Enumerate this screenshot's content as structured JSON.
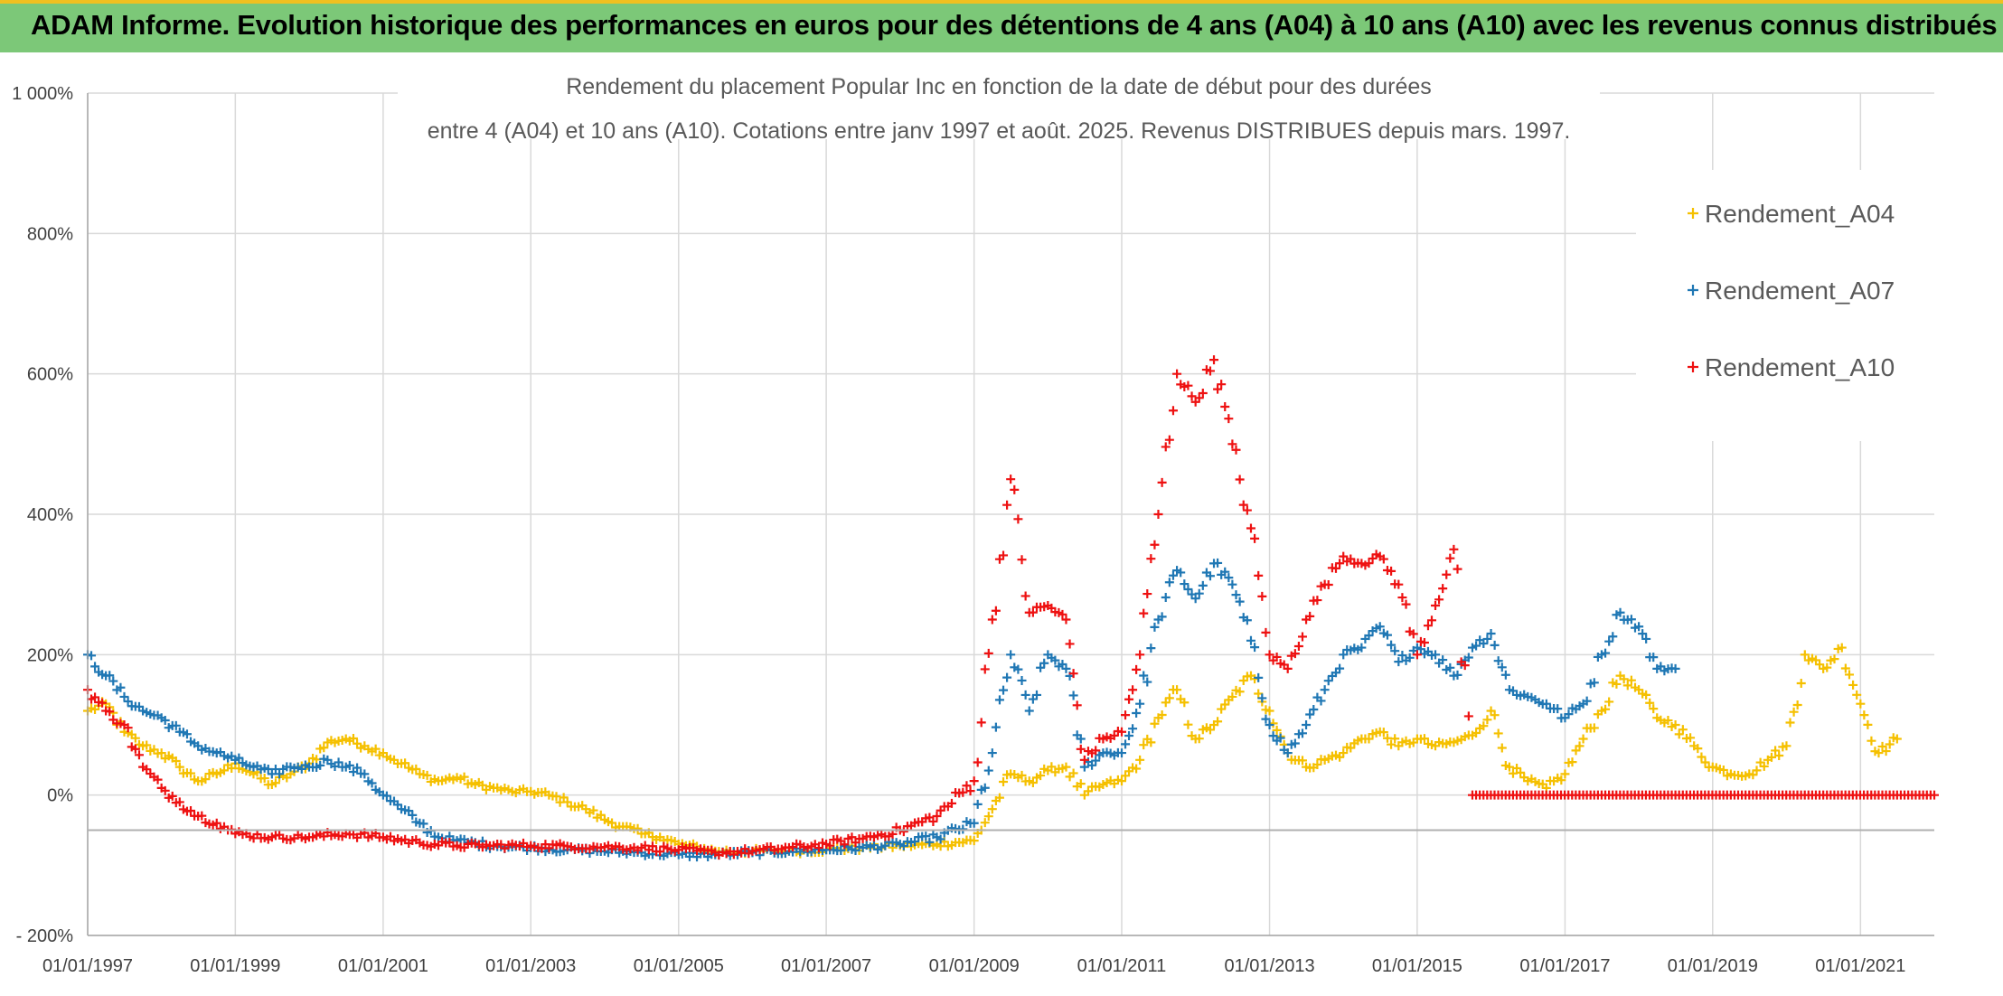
{
  "banner": {
    "text": "ADAM Informe. Evolution historique des performances en euros pour des détentions de 4 ans (A04) à 10 ans (A10) avec les revenus connus distribués"
  },
  "chart_data": {
    "type": "scatter",
    "title_line1": "Rendement du placement Popular Inc en fonction de la date de début pour des durées",
    "title_line2": "entre 4 (A04) et 10 ans (A10). Cotations entre janv 1997 et août. 2025. Revenus DISTRIBUES depuis mars. 1997.",
    "xlabel": "",
    "ylabel": "",
    "x_range": [
      "1997-01-01",
      "2022-01-01"
    ],
    "ylim": [
      -200,
      1000
    ],
    "y_ticks": [
      -200,
      0,
      200,
      400,
      600,
      800,
      1000
    ],
    "y_tick_labels": [
      "- 200%",
      "0%",
      "200%",
      "400%",
      "600%",
      "800%",
      "1 000%"
    ],
    "x_ticks": [
      "1997-01-01",
      "1999-01-01",
      "2001-01-01",
      "2003-01-01",
      "2005-01-01",
      "2007-01-01",
      "2009-01-01",
      "2011-01-01",
      "2013-01-01",
      "2015-01-01",
      "2017-01-01",
      "2019-01-01",
      "2021-01-01"
    ],
    "x_tick_labels": [
      "01/01/1997",
      "01/01/1999",
      "01/01/2001",
      "01/01/2003",
      "01/01/2005",
      "01/01/2007",
      "01/01/2009",
      "01/01/2011",
      "01/01/2013",
      "01/01/2015",
      "01/01/2017",
      "01/01/2019",
      "01/01/2021"
    ],
    "reference_line_y": -50,
    "grid": true,
    "legend_position": "top-right",
    "marker": "+",
    "series": [
      {
        "name": "Rendement_A04",
        "color": "#f5c000",
        "points": [
          [
            "1997-01-01",
            120
          ],
          [
            "1997-04-01",
            130
          ],
          [
            "1997-07-01",
            90
          ],
          [
            "1997-10-01",
            70
          ],
          [
            "1998-01-01",
            60
          ],
          [
            "1998-04-01",
            40
          ],
          [
            "1998-07-01",
            20
          ],
          [
            "1998-10-01",
            30
          ],
          [
            "1999-01-01",
            45
          ],
          [
            "1999-04-01",
            30
          ],
          [
            "1999-07-01",
            15
          ],
          [
            "1999-10-01",
            30
          ],
          [
            "2000-01-01",
            45
          ],
          [
            "2000-04-01",
            75
          ],
          [
            "2000-07-01",
            80
          ],
          [
            "2000-10-01",
            70
          ],
          [
            "2001-01-01",
            60
          ],
          [
            "2001-04-01",
            45
          ],
          [
            "2001-07-01",
            30
          ],
          [
            "2001-10-01",
            20
          ],
          [
            "2002-01-01",
            25
          ],
          [
            "2002-04-01",
            15
          ],
          [
            "2002-07-01",
            10
          ],
          [
            "2002-10-01",
            5
          ],
          [
            "2003-01-01",
            5
          ],
          [
            "2003-04-01",
            0
          ],
          [
            "2003-07-01",
            -10
          ],
          [
            "2003-10-01",
            -20
          ],
          [
            "2004-01-01",
            -35
          ],
          [
            "2004-04-01",
            -45
          ],
          [
            "2004-07-01",
            -55
          ],
          [
            "2004-10-01",
            -60
          ],
          [
            "2005-01-01",
            -70
          ],
          [
            "2005-07-01",
            -80
          ],
          [
            "2006-01-01",
            -80
          ],
          [
            "2006-07-01",
            -80
          ],
          [
            "2007-01-01",
            -78
          ],
          [
            "2007-07-01",
            -75
          ],
          [
            "2008-01-01",
            -72
          ],
          [
            "2008-07-01",
            -70
          ],
          [
            "2009-01-01",
            -65
          ],
          [
            "2009-04-01",
            -20
          ],
          [
            "2009-07-01",
            30
          ],
          [
            "2009-10-01",
            20
          ],
          [
            "2010-01-01",
            35
          ],
          [
            "2010-04-01",
            40
          ],
          [
            "2010-07-01",
            0
          ],
          [
            "2010-10-01",
            15
          ],
          [
            "2011-01-01",
            20
          ],
          [
            "2011-04-01",
            50
          ],
          [
            "2011-07-01",
            110
          ],
          [
            "2011-10-01",
            150
          ],
          [
            "2012-01-01",
            80
          ],
          [
            "2012-04-01",
            100
          ],
          [
            "2012-07-01",
            140
          ],
          [
            "2012-10-01",
            170
          ],
          [
            "2013-01-01",
            120
          ],
          [
            "2013-04-01",
            60
          ],
          [
            "2013-07-01",
            40
          ],
          [
            "2013-10-01",
            50
          ],
          [
            "2014-01-01",
            60
          ],
          [
            "2014-04-01",
            80
          ],
          [
            "2014-07-01",
            90
          ],
          [
            "2014-10-01",
            70
          ],
          [
            "2015-01-01",
            80
          ],
          [
            "2015-04-01",
            70
          ],
          [
            "2015-07-01",
            75
          ],
          [
            "2015-10-01",
            85
          ],
          [
            "2016-01-01",
            120
          ],
          [
            "2016-04-01",
            40
          ],
          [
            "2016-07-01",
            20
          ],
          [
            "2016-10-01",
            10
          ],
          [
            "2017-01-01",
            30
          ],
          [
            "2017-04-01",
            80
          ],
          [
            "2017-07-01",
            120
          ],
          [
            "2017-10-01",
            170
          ],
          [
            "2018-01-01",
            150
          ],
          [
            "2018-04-01",
            110
          ],
          [
            "2018-07-01",
            100
          ],
          [
            "2018-10-01",
            70
          ],
          [
            "2019-01-01",
            40
          ],
          [
            "2019-04-01",
            30
          ],
          [
            "2019-07-01",
            30
          ],
          [
            "2019-10-01",
            50
          ],
          [
            "2020-01-01",
            70
          ],
          [
            "2020-04-01",
            200
          ],
          [
            "2020-07-01",
            180
          ],
          [
            "2020-10-01",
            210
          ],
          [
            "2021-01-01",
            130
          ],
          [
            "2021-04-01",
            60
          ],
          [
            "2021-07-01",
            80
          ]
        ]
      },
      {
        "name": "Rendement_A07",
        "color": "#1f77b4",
        "points": [
          [
            "1997-01-01",
            200
          ],
          [
            "1997-04-01",
            170
          ],
          [
            "1997-07-01",
            140
          ],
          [
            "1997-10-01",
            120
          ],
          [
            "1998-01-01",
            110
          ],
          [
            "1998-04-01",
            90
          ],
          [
            "1998-07-01",
            70
          ],
          [
            "1998-10-01",
            60
          ],
          [
            "1999-01-01",
            50
          ],
          [
            "1999-04-01",
            40
          ],
          [
            "1999-07-01",
            30
          ],
          [
            "1999-10-01",
            40
          ],
          [
            "2000-01-01",
            40
          ],
          [
            "2000-04-01",
            50
          ],
          [
            "2000-07-01",
            40
          ],
          [
            "2000-10-01",
            30
          ],
          [
            "2001-01-01",
            0
          ],
          [
            "2001-04-01",
            -20
          ],
          [
            "2001-07-01",
            -40
          ],
          [
            "2001-10-01",
            -60
          ],
          [
            "2002-01-01",
            -65
          ],
          [
            "2002-07-01",
            -72
          ],
          [
            "2003-01-01",
            -75
          ],
          [
            "2003-07-01",
            -78
          ],
          [
            "2004-01-01",
            -80
          ],
          [
            "2004-07-01",
            -82
          ],
          [
            "2005-01-01",
            -85
          ],
          [
            "2005-07-01",
            -85
          ],
          [
            "2006-01-01",
            -82
          ],
          [
            "2006-07-01",
            -80
          ],
          [
            "2007-01-01",
            -78
          ],
          [
            "2007-07-01",
            -75
          ],
          [
            "2008-01-01",
            -70
          ],
          [
            "2008-07-01",
            -60
          ],
          [
            "2009-01-01",
            -40
          ],
          [
            "2009-04-01",
            60
          ],
          [
            "2009-07-01",
            200
          ],
          [
            "2009-10-01",
            120
          ],
          [
            "2010-01-01",
            200
          ],
          [
            "2010-04-01",
            180
          ],
          [
            "2010-07-01",
            40
          ],
          [
            "2010-10-01",
            60
          ],
          [
            "2011-01-01",
            60
          ],
          [
            "2011-04-01",
            130
          ],
          [
            "2011-07-01",
            250
          ],
          [
            "2011-10-01",
            320
          ],
          [
            "2012-01-01",
            280
          ],
          [
            "2012-04-01",
            330
          ],
          [
            "2012-07-01",
            300
          ],
          [
            "2012-10-01",
            220
          ],
          [
            "2013-01-01",
            100
          ],
          [
            "2013-04-01",
            60
          ],
          [
            "2013-07-01",
            100
          ],
          [
            "2013-10-01",
            150
          ],
          [
            "2014-01-01",
            200
          ],
          [
            "2014-04-01",
            210
          ],
          [
            "2014-07-01",
            240
          ],
          [
            "2014-10-01",
            190
          ],
          [
            "2015-01-01",
            210
          ],
          [
            "2015-04-01",
            200
          ],
          [
            "2015-07-01",
            170
          ],
          [
            "2015-10-01",
            210
          ],
          [
            "2016-01-01",
            230
          ],
          [
            "2016-04-01",
            150
          ],
          [
            "2016-07-01",
            140
          ],
          [
            "2016-10-01",
            130
          ],
          [
            "2017-01-01",
            110
          ],
          [
            "2017-04-01",
            130
          ],
          [
            "2017-07-01",
            200
          ],
          [
            "2017-10-01",
            260
          ],
          [
            "2018-01-01",
            240
          ],
          [
            "2018-04-01",
            180
          ],
          [
            "2018-07-01",
            180
          ]
        ]
      },
      {
        "name": "Rendement_A10",
        "color": "#ee1111",
        "points": [
          [
            "1997-01-01",
            150
          ],
          [
            "1997-04-01",
            120
          ],
          [
            "1997-07-01",
            100
          ],
          [
            "1997-10-01",
            40
          ],
          [
            "1998-01-01",
            10
          ],
          [
            "1998-04-01",
            -10
          ],
          [
            "1998-07-01",
            -30
          ],
          [
            "1998-10-01",
            -40
          ],
          [
            "1999-01-01",
            -55
          ],
          [
            "1999-07-01",
            -60
          ],
          [
            "2000-01-01",
            -60
          ],
          [
            "2000-07-01",
            -55
          ],
          [
            "2001-01-01",
            -60
          ],
          [
            "2001-07-01",
            -68
          ],
          [
            "2002-01-01",
            -72
          ],
          [
            "2002-07-01",
            -72
          ],
          [
            "2003-01-01",
            -72
          ],
          [
            "2003-07-01",
            -73
          ],
          [
            "2004-01-01",
            -74
          ],
          [
            "2004-07-01",
            -75
          ],
          [
            "2005-01-01",
            -78
          ],
          [
            "2005-07-01",
            -82
          ],
          [
            "2006-01-01",
            -80
          ],
          [
            "2006-07-01",
            -75
          ],
          [
            "2007-01-01",
            -70
          ],
          [
            "2007-07-01",
            -62
          ],
          [
            "2008-01-01",
            -50
          ],
          [
            "2008-07-01",
            -30
          ],
          [
            "2009-01-01",
            20
          ],
          [
            "2009-04-01",
            250
          ],
          [
            "2009-07-01",
            450
          ],
          [
            "2009-10-01",
            260
          ],
          [
            "2010-01-01",
            270
          ],
          [
            "2010-04-01",
            250
          ],
          [
            "2010-07-01",
            50
          ],
          [
            "2010-10-01",
            80
          ],
          [
            "2011-01-01",
            90
          ],
          [
            "2011-04-01",
            200
          ],
          [
            "2011-07-01",
            400
          ],
          [
            "2011-10-01",
            600
          ],
          [
            "2012-01-01",
            560
          ],
          [
            "2012-04-01",
            620
          ],
          [
            "2012-07-01",
            500
          ],
          [
            "2012-10-01",
            380
          ],
          [
            "2013-01-01",
            200
          ],
          [
            "2013-04-01",
            180
          ],
          [
            "2013-07-01",
            250
          ],
          [
            "2013-10-01",
            300
          ],
          [
            "2014-01-01",
            340
          ],
          [
            "2014-04-01",
            330
          ],
          [
            "2014-07-01",
            340
          ],
          [
            "2014-10-01",
            300
          ],
          [
            "2015-01-01",
            200
          ],
          [
            "2015-04-01",
            270
          ],
          [
            "2015-07-01",
            350
          ],
          [
            "2015-10-01",
            0
          ],
          [
            "2016-07-01",
            0
          ],
          [
            "2017-07-01",
            0
          ],
          [
            "2018-07-01",
            0
          ],
          [
            "2019-07-01",
            0
          ],
          [
            "2020-07-01",
            0
          ],
          [
            "2021-07-01",
            0
          ],
          [
            "2022-01-01",
            0
          ]
        ]
      }
    ]
  }
}
